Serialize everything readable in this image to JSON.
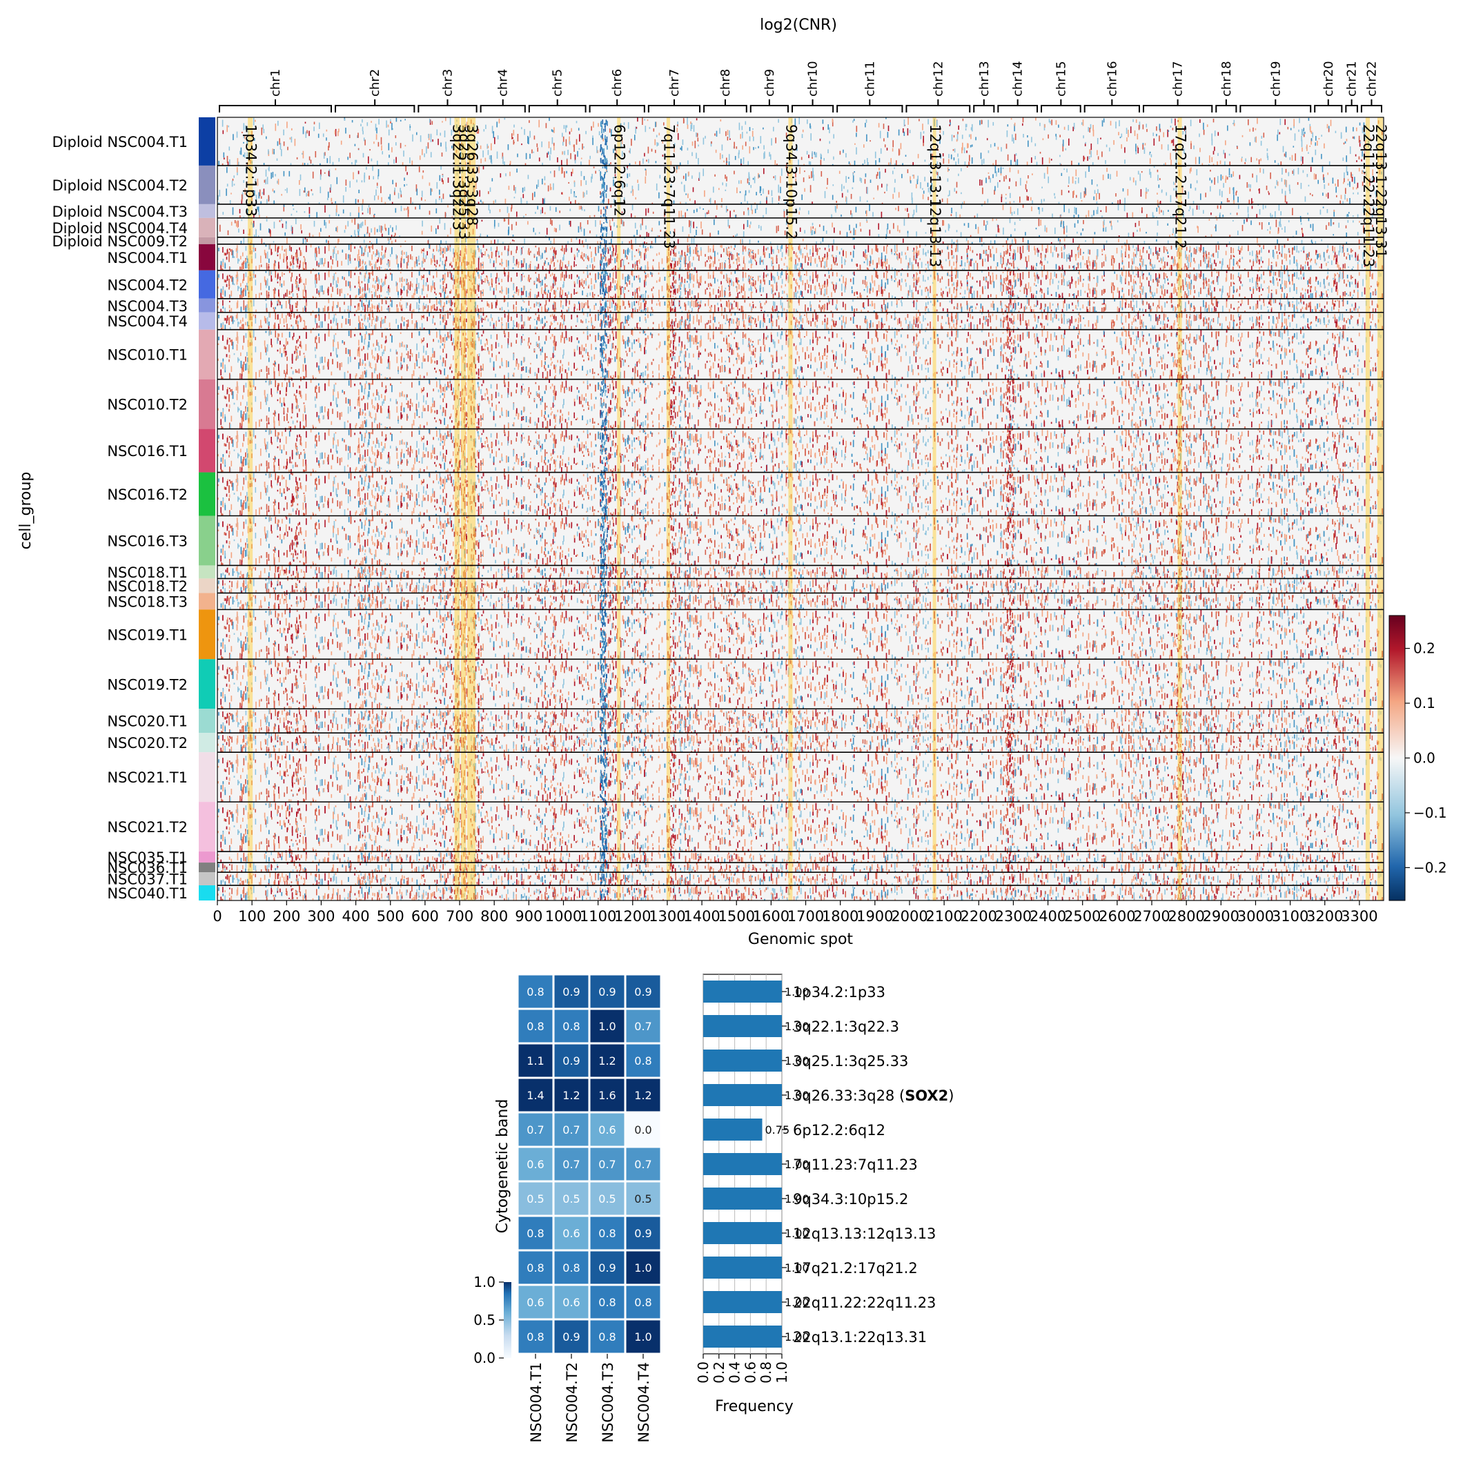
{
  "colors": {
    "neg": "#2166ac",
    "pos": "#b2182b",
    "highlight": "#ffd34d",
    "bar": "#1f77b4"
  },
  "chart_data": [
    {
      "type": "heatmap",
      "title": "log2(CNR)",
      "xlabel": "Genomic spot",
      "ylabel": "cell_group",
      "xlim": [
        0,
        3370
      ],
      "xticks": [
        "0",
        "100",
        "200",
        "300",
        "400",
        "500",
        "600",
        "700",
        "800",
        "900",
        "1000",
        "1100",
        "1200",
        "1300",
        "1400",
        "1500",
        "1600",
        "1700",
        "1800",
        "1900",
        "2000",
        "2100",
        "2200",
        "2300",
        "2400",
        "2500",
        "2600",
        "2700",
        "2800",
        "2900",
        "3000",
        "3100",
        "3200",
        "3300"
      ],
      "chromosomes": [
        {
          "name": "chr1",
          "start": 0,
          "end": 335
        },
        {
          "name": "chr2",
          "start": 335,
          "end": 575
        },
        {
          "name": "chr3",
          "start": 575,
          "end": 755
        },
        {
          "name": "chr4",
          "start": 755,
          "end": 895
        },
        {
          "name": "chr5",
          "start": 895,
          "end": 1070
        },
        {
          "name": "chr6",
          "start": 1070,
          "end": 1240
        },
        {
          "name": "chr7",
          "start": 1240,
          "end": 1400
        },
        {
          "name": "chr8",
          "start": 1400,
          "end": 1535
        },
        {
          "name": "chr9",
          "start": 1535,
          "end": 1655
        },
        {
          "name": "chr10",
          "start": 1655,
          "end": 1785
        },
        {
          "name": "chr11",
          "start": 1785,
          "end": 1985
        },
        {
          "name": "chr12",
          "start": 1985,
          "end": 2180
        },
        {
          "name": "chr13",
          "start": 2180,
          "end": 2250
        },
        {
          "name": "chr14",
          "start": 2250,
          "end": 2375
        },
        {
          "name": "chr15",
          "start": 2375,
          "end": 2500
        },
        {
          "name": "chr16",
          "start": 2500,
          "end": 2670
        },
        {
          "name": "chr17",
          "start": 2670,
          "end": 2880
        },
        {
          "name": "chr18",
          "start": 2880,
          "end": 2950
        },
        {
          "name": "chr19",
          "start": 2950,
          "end": 3165
        },
        {
          "name": "chr20",
          "start": 3165,
          "end": 3255
        },
        {
          "name": "chr21",
          "start": 3255,
          "end": 3300
        },
        {
          "name": "chr22",
          "start": 3300,
          "end": 3370
        }
      ],
      "highlight_regions": [
        {
          "label": "1p34.2:1p33",
          "start": 88,
          "end": 102
        },
        {
          "label": "3q22.1:3q22.3",
          "start": 685,
          "end": 700
        },
        {
          "label": "3q25.1:3q25.33",
          "start": 704,
          "end": 718
        },
        {
          "label": "3q26.33:3q28",
          "start": 722,
          "end": 746
        },
        {
          "label": "6p12.2:6q12",
          "start": 1155,
          "end": 1165
        },
        {
          "label": "7q11.23:7q11.23",
          "start": 1298,
          "end": 1308
        },
        {
          "label": "9q34.3:10p15.2",
          "start": 1650,
          "end": 1662
        },
        {
          "label": "12q13.13:12q13.13",
          "start": 2067,
          "end": 2077
        },
        {
          "label": "17q21.2:17q21.2",
          "start": 2775,
          "end": 2787
        },
        {
          "label": "22q11.22:22q11.23",
          "start": 3318,
          "end": 3330
        },
        {
          "label": "22q13.1:22q13.31",
          "start": 3352,
          "end": 3368
        }
      ],
      "groups": [
        {
          "name": "Diploid NSC004.T1",
          "size": 70,
          "color": "#0c3fa4"
        },
        {
          "name": "Diploid NSC004.T2",
          "size": 56,
          "color": "#8a8fbd"
        },
        {
          "name": "Diploid NSC004.T3",
          "size": 20,
          "color": "#bfbfdf"
        },
        {
          "name": "Diploid NSC004.T4",
          "size": 28,
          "color": "#d9b2b9"
        },
        {
          "name": "Diploid NSC009.T2",
          "size": 10,
          "color": "#c49aa5"
        },
        {
          "name": "NSC004.T1",
          "size": 38,
          "color": "#88063d"
        },
        {
          "name": "NSC004.T2",
          "size": 41,
          "color": "#4569e1"
        },
        {
          "name": "NSC004.T3",
          "size": 20,
          "color": "#8895de"
        },
        {
          "name": "NSC004.T4",
          "size": 25,
          "color": "#b7bbe9"
        },
        {
          "name": "NSC010.T1",
          "size": 72,
          "color": "#e3a9b3"
        },
        {
          "name": "NSC010.T2",
          "size": 72,
          "color": "#d87a92"
        },
        {
          "name": "NSC016.T1",
          "size": 63,
          "color": "#d2486f"
        },
        {
          "name": "NSC016.T2",
          "size": 63,
          "color": "#1bc140"
        },
        {
          "name": "NSC016.T3",
          "size": 72,
          "color": "#89d08c"
        },
        {
          "name": "NSC018.T1",
          "size": 19,
          "color": "#c6e4c1"
        },
        {
          "name": "NSC018.T2",
          "size": 21,
          "color": "#ebd5c6"
        },
        {
          "name": "NSC018.T3",
          "size": 24,
          "color": "#f2b28d"
        },
        {
          "name": "NSC019.T1",
          "size": 72,
          "color": "#ee950f"
        },
        {
          "name": "NSC019.T2",
          "size": 72,
          "color": "#10ccb5"
        },
        {
          "name": "NSC020.T1",
          "size": 35,
          "color": "#9bdbd2"
        },
        {
          "name": "NSC020.T2",
          "size": 28,
          "color": "#d0ebe4"
        },
        {
          "name": "NSC021.T1",
          "size": 72,
          "color": "#f1dee8"
        },
        {
          "name": "NSC021.T2",
          "size": 72,
          "color": "#f4c0de"
        },
        {
          "name": "NSC035.T1",
          "size": 16,
          "color": "#ec99cf"
        },
        {
          "name": "NSC036.T1",
          "size": 14,
          "color": "#808080"
        },
        {
          "name": "NSC037.T1",
          "size": 19,
          "color": "#c5c5c5"
        },
        {
          "name": "NSC040.T1",
          "size": 22,
          "color": "#19dcef"
        }
      ],
      "colorbar": {
        "min": -0.26,
        "max": 0.26,
        "ticks": [
          "0.2",
          "0.1",
          "0.0",
          "−0.1",
          "−0.2"
        ],
        "tick_values": [
          0.2,
          0.1,
          0.0,
          -0.1,
          -0.2
        ]
      }
    },
    {
      "type": "heatmap",
      "xlabel": "",
      "ylabel": "Cytogenetic band",
      "columns": [
        "NSC004.T1",
        "NSC004.T2",
        "NSC004.T3",
        "NSC004.T4"
      ],
      "values": [
        [
          0.8,
          0.9,
          0.9,
          0.9
        ],
        [
          0.8,
          0.8,
          1.0,
          0.7
        ],
        [
          1.1,
          0.9,
          1.2,
          0.8
        ],
        [
          1.4,
          1.2,
          1.6,
          1.2
        ],
        [
          0.7,
          0.7,
          0.6,
          0.0
        ],
        [
          0.6,
          0.7,
          0.7,
          0.7
        ],
        [
          0.5,
          0.5,
          0.5,
          0.5
        ],
        [
          0.8,
          0.6,
          0.8,
          0.9
        ],
        [
          0.8,
          0.8,
          0.9,
          1.0
        ],
        [
          0.6,
          0.6,
          0.8,
          0.8
        ],
        [
          0.8,
          0.9,
          0.8,
          1.0
        ]
      ],
      "colorbar": {
        "min": 0.0,
        "max": 1.0,
        "ticks": [
          "1.0",
          "0.5",
          "0.0"
        ]
      }
    },
    {
      "type": "bar",
      "orientation": "horizontal",
      "xlabel": "Frequency",
      "xlim": [
        0,
        1
      ],
      "xticks": [
        "0.0",
        "0.2",
        "0.4",
        "0.6",
        "0.8",
        "1.0"
      ],
      "categories": [
        "1p34.2:1p33",
        "3q22.1:3q22.3",
        "3q25.1:3q25.33",
        "3q26.33:3q28",
        "6p12.2:6q12",
        "7q11.23:7q11.23",
        "9q34.3:10p15.2",
        "12q13.13:12q13.13",
        "17q21.2:17q21.2",
        "22q11.22:22q11.23",
        "22q13.1:22q13.31"
      ],
      "category_suffix": [
        "",
        "",
        "",
        "SOX2",
        "",
        "",
        "",
        "",
        "",
        "",
        ""
      ],
      "values": [
        1.0,
        1.0,
        1.0,
        1.0,
        0.75,
        1.0,
        1.0,
        1.0,
        1.0,
        1.0,
        1.0
      ],
      "value_labels": [
        "1.00",
        "1.00",
        "1.00",
        "1.00",
        "0.75",
        "1.00",
        "1.00",
        "1.00",
        "1.00",
        "1.00",
        "1.00"
      ]
    }
  ]
}
